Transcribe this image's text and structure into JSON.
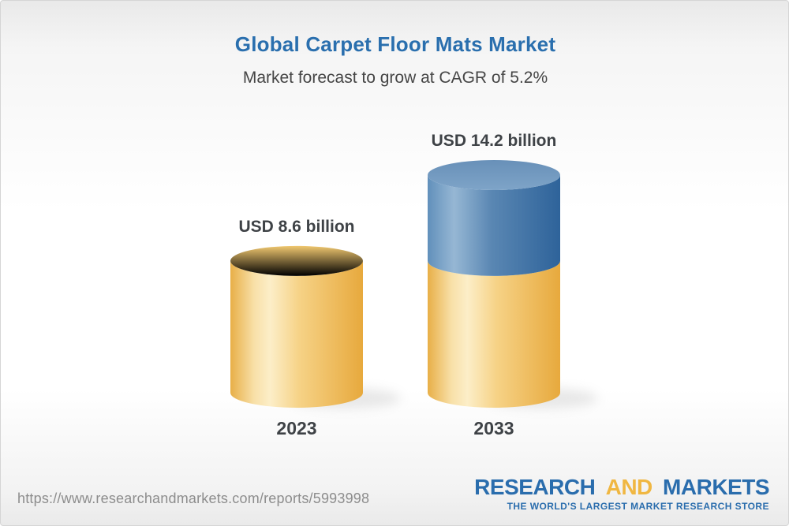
{
  "header": {
    "title": "Global Carpet Floor Mats Market",
    "subtitle": "Market forecast to grow at CAGR of 5.2%"
  },
  "chart_data": {
    "type": "bar",
    "style": "3d-cylinder",
    "title": "Global Carpet Floor Mats Market",
    "subtitle": "Market forecast to grow at CAGR of 5.2%",
    "unit": "USD billion",
    "cagr_percent": 5.2,
    "categories": [
      "2023",
      "2033"
    ],
    "values": [
      8.6,
      14.2
    ],
    "value_labels": [
      "USD 8.6 billion",
      "USD 14.2 billion"
    ],
    "ylim": [
      0,
      14.2
    ],
    "grid": false,
    "legend": false,
    "bars": [
      {
        "year": "2023",
        "label": "USD 8.6 billion",
        "total": 8.6,
        "segments": [
          {
            "name": "base-2023",
            "value": 8.6,
            "palette": "gold"
          }
        ]
      },
      {
        "year": "2033",
        "label": "USD 14.2 billion",
        "total": 14.2,
        "segments": [
          {
            "name": "base-2023",
            "value": 8.6,
            "palette": "gold"
          },
          {
            "name": "growth-2023-2033",
            "value": 5.6,
            "palette": "blue"
          }
        ]
      }
    ],
    "colors": {
      "gold": "#f5cf7d",
      "blue": "#4f7dac"
    }
  },
  "footer": {
    "url": "https://www.researchandmarkets.com/reports/5993998",
    "logo": {
      "part1": "RESEARCH",
      "part2": "AND",
      "part3": "MARKETS",
      "tagline": "THE WORLD'S LARGEST MARKET RESEARCH STORE",
      "blue": "#2a6dad",
      "gold": "#f0b742"
    }
  },
  "colors": {
    "title_blue": "#2a6fae",
    "subtitle_gray": "#454545",
    "label_dark": "#3e4246",
    "url_gray": "#8d8d8d"
  }
}
